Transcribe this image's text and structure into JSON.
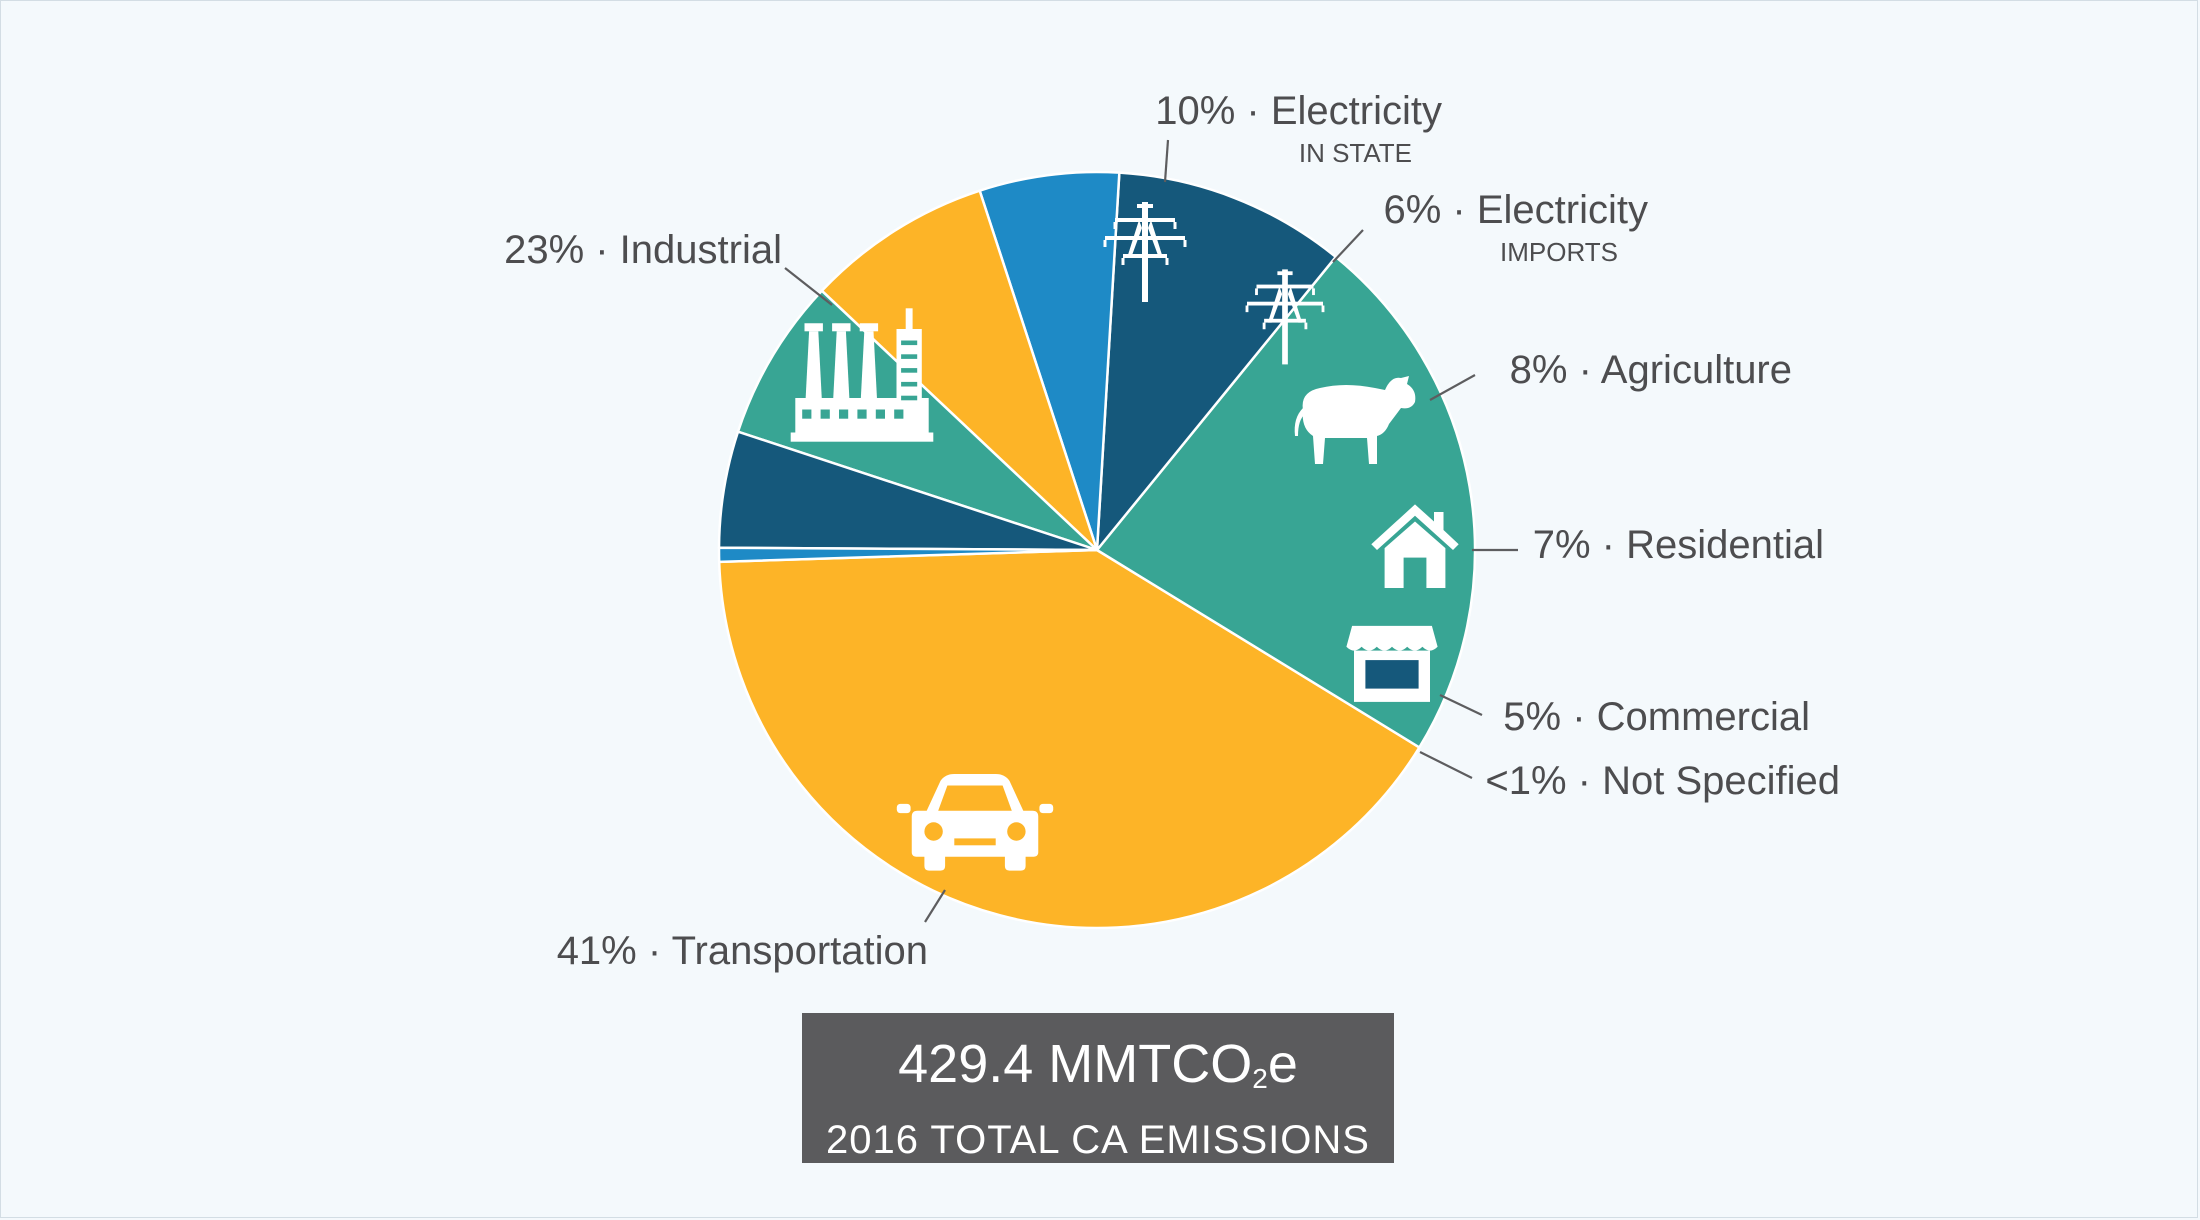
{
  "chart_data": {
    "type": "pie",
    "slices": [
      {
        "key": "transportation",
        "pct": "41%",
        "label": "Transportation",
        "sub": "",
        "value": 41.0,
        "color": "#fdb427",
        "icon": "car-icon"
      },
      {
        "key": "industrial",
        "pct": "23%",
        "label": "Industrial",
        "sub": "",
        "value": 23.0,
        "color": "#38a594",
        "icon": "factory-icon"
      },
      {
        "key": "electricity-in-state",
        "pct": "10%",
        "label": "Electricity",
        "sub": "IN STATE",
        "value": 10.0,
        "color": "#15587b",
        "icon": "power-tower-icon"
      },
      {
        "key": "electricity-imports",
        "pct": "6%",
        "label": "Electricity",
        "sub": "IMPORTS",
        "value": 6.0,
        "color": "#1e8ac6",
        "icon": "power-tower-icon"
      },
      {
        "key": "agriculture",
        "pct": "8%",
        "label": "Agriculture",
        "sub": "",
        "value": 8.0,
        "color": "#fdb427",
        "icon": "cow-icon"
      },
      {
        "key": "residential",
        "pct": "7%",
        "label": "Residential",
        "sub": "",
        "value": 7.0,
        "color": "#38a594",
        "icon": "house-icon"
      },
      {
        "key": "commercial",
        "pct": "5%",
        "label": "Commercial",
        "sub": "",
        "value": 5.0,
        "color": "#15587b",
        "icon": "storefront-icon"
      },
      {
        "key": "not-specified",
        "pct": "<1%",
        "label": "Not Specified",
        "sub": "",
        "value": 0.6,
        "color": "#1e8ac6",
        "icon": ""
      }
    ],
    "separator": " · "
  },
  "total": {
    "value": "429.4 MMTCO",
    "value_sub": "2",
    "value_suffix": "e",
    "caption": "2016 TOTAL CA EMISSIONS"
  }
}
